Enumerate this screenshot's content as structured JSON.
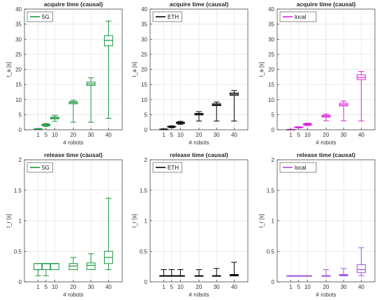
{
  "colors": {
    "5G": "#1a9641",
    "ETH": "#000000",
    "local_acquire": "#e020e0",
    "local_release": "#a050e0",
    "grid": "#e4e4e4",
    "axis": "#333333"
  },
  "chart_data": [
    {
      "type": "box",
      "title": "acquire time (causal)",
      "xlabel": "# robots",
      "ylabel": "t_a [s]",
      "ylim": [
        0,
        40
      ],
      "yticks": [
        0,
        5,
        10,
        15,
        20,
        25,
        30,
        35,
        40
      ],
      "grid": true,
      "legend": "top-left",
      "categories": [
        "1",
        "5",
        "10",
        "20",
        "30",
        "40"
      ],
      "series": [
        {
          "name": "5G",
          "color_key": "5G",
          "boxes": [
            {
              "x": 1,
              "min": 0.1,
              "q1": 0.15,
              "median": 0.2,
              "q3": 0.3,
              "max": 0.4
            },
            {
              "x": 5,
              "min": 1.1,
              "q1": 1.4,
              "median": 1.6,
              "q3": 1.8,
              "max": 2.1
            },
            {
              "x": 10,
              "min": 2.8,
              "q1": 3.6,
              "median": 3.9,
              "q3": 4.2,
              "max": 4.8
            },
            {
              "x": 20,
              "min": 2.5,
              "q1": 8.6,
              "median": 9.0,
              "q3": 9.3,
              "max": 9.8
            },
            {
              "x": 30,
              "min": 2.5,
              "q1": 14.7,
              "median": 15.2,
              "q3": 15.8,
              "max": 17.2
            },
            {
              "x": 40,
              "min": 3.8,
              "q1": 27.8,
              "median": 29.6,
              "q3": 31.2,
              "max": 36.0
            }
          ]
        }
      ]
    },
    {
      "type": "box",
      "title": "acquire time (causal)",
      "xlabel": "# robots",
      "ylabel": "t_a [s]",
      "ylim": [
        0,
        40
      ],
      "yticks": [
        0,
        5,
        10,
        15,
        20,
        25,
        30,
        35,
        40
      ],
      "grid": true,
      "legend": "top-left",
      "categories": [
        "1",
        "5",
        "10",
        "20",
        "30",
        "40"
      ],
      "series": [
        {
          "name": "ETH",
          "color_key": "ETH",
          "boxes": [
            {
              "x": 1,
              "min": 0.05,
              "q1": 0.1,
              "median": 0.15,
              "q3": 0.2,
              "max": 0.3
            },
            {
              "x": 5,
              "min": 0.7,
              "q1": 0.9,
              "median": 1.0,
              "q3": 1.1,
              "max": 1.3
            },
            {
              "x": 10,
              "min": 1.8,
              "q1": 2.1,
              "median": 2.3,
              "q3": 2.5,
              "max": 2.8
            },
            {
              "x": 20,
              "min": 2.9,
              "q1": 4.9,
              "median": 5.2,
              "q3": 5.4,
              "max": 6.0
            },
            {
              "x": 30,
              "min": 2.9,
              "q1": 8.0,
              "median": 8.3,
              "q3": 8.6,
              "max": 9.2
            },
            {
              "x": 40,
              "min": 2.9,
              "q1": 11.4,
              "median": 11.8,
              "q3": 12.2,
              "max": 13.0
            }
          ]
        }
      ]
    },
    {
      "type": "box",
      "title": "acquire time (causal)",
      "xlabel": "# robots",
      "ylabel": "t_a [s]",
      "ylim": [
        0,
        40
      ],
      "yticks": [
        0,
        5,
        10,
        15,
        20,
        25,
        30,
        35,
        40
      ],
      "grid": true,
      "legend": "top-left",
      "categories": [
        "1",
        "5",
        "10",
        "20",
        "30",
        "40"
      ],
      "series": [
        {
          "name": "local",
          "color_key": "local_acquire",
          "boxes": [
            {
              "x": 1,
              "min": 0.05,
              "q1": 0.08,
              "median": 0.1,
              "q3": 0.12,
              "max": 0.15
            },
            {
              "x": 5,
              "min": 0.6,
              "q1": 0.7,
              "median": 0.8,
              "q3": 0.9,
              "max": 1.0
            },
            {
              "x": 10,
              "min": 1.4,
              "q1": 1.6,
              "median": 1.8,
              "q3": 2.0,
              "max": 2.2
            },
            {
              "x": 20,
              "min": 3.0,
              "q1": 4.2,
              "median": 4.5,
              "q3": 4.8,
              "max": 5.2
            },
            {
              "x": 30,
              "min": 3.0,
              "q1": 7.9,
              "median": 8.3,
              "q3": 8.8,
              "max": 9.5
            },
            {
              "x": 40,
              "min": 2.9,
              "q1": 16.6,
              "median": 17.3,
              "q3": 18.2,
              "max": 19.3
            }
          ]
        }
      ]
    },
    {
      "type": "box",
      "title": "release time (causal)",
      "xlabel": "# robots",
      "ylabel": "t_r [s]",
      "ylim": [
        0,
        2
      ],
      "yticks": [
        0,
        0.5,
        1,
        1.5,
        2
      ],
      "grid": true,
      "legend": "top-left",
      "categories": [
        "1",
        "5",
        "10",
        "20",
        "30",
        "40"
      ],
      "series": [
        {
          "name": "5G",
          "color_key": "5G",
          "boxes": [
            {
              "x": 1,
              "min": 0.1,
              "q1": 0.2,
              "median": 0.2,
              "q3": 0.3,
              "max": 0.3
            },
            {
              "x": 5,
              "min": 0.1,
              "q1": 0.2,
              "median": 0.3,
              "q3": 0.3,
              "max": 0.3
            },
            {
              "x": 10,
              "min": 0.2,
              "q1": 0.2,
              "median": 0.3,
              "q3": 0.3,
              "max": 0.3
            },
            {
              "x": 20,
              "min": 0.2,
              "q1": 0.2,
              "median": 0.26,
              "q3": 0.3,
              "max": 0.4
            },
            {
              "x": 30,
              "min": 0.2,
              "q1": 0.2,
              "median": 0.27,
              "q3": 0.31,
              "max": 0.46
            },
            {
              "x": 40,
              "min": 0.2,
              "q1": 0.3,
              "median": 0.4,
              "q3": 0.5,
              "max": 1.37
            }
          ]
        }
      ]
    },
    {
      "type": "box",
      "title": "release time (causal)",
      "xlabel": "# robots",
      "ylabel": "t_r [s]",
      "ylim": [
        0,
        2
      ],
      "yticks": [
        0,
        0.5,
        1,
        1.5,
        2
      ],
      "grid": true,
      "legend": "top-left",
      "categories": [
        "1",
        "5",
        "10",
        "20",
        "30",
        "40"
      ],
      "series": [
        {
          "name": "ETH",
          "color_key": "ETH",
          "boxes": [
            {
              "x": 1,
              "min": 0.1,
              "q1": 0.1,
              "median": 0.1,
              "q3": 0.1,
              "max": 0.2
            },
            {
              "x": 5,
              "min": 0.1,
              "q1": 0.1,
              "median": 0.1,
              "q3": 0.1,
              "max": 0.2
            },
            {
              "x": 10,
              "min": 0.1,
              "q1": 0.1,
              "median": 0.1,
              "q3": 0.1,
              "max": 0.2
            },
            {
              "x": 20,
              "min": 0.1,
              "q1": 0.1,
              "median": 0.1,
              "q3": 0.1,
              "max": 0.2
            },
            {
              "x": 30,
              "min": 0.1,
              "q1": 0.1,
              "median": 0.1,
              "q3": 0.1,
              "max": 0.22
            },
            {
              "x": 40,
              "min": 0.1,
              "q1": 0.1,
              "median": 0.11,
              "q3": 0.12,
              "max": 0.32
            }
          ]
        }
      ]
    },
    {
      "type": "box",
      "title": "release time (causal)",
      "xlabel": "# robots",
      "ylabel": "t_r [s]",
      "ylim": [
        0,
        2
      ],
      "yticks": [
        0,
        0.5,
        1,
        1.5,
        2
      ],
      "grid": true,
      "legend": "top-left",
      "categories": [
        "1",
        "5",
        "10",
        "20",
        "30",
        "40"
      ],
      "series": [
        {
          "name": "local",
          "color_key": "local_release",
          "boxes": [
            {
              "x": 1,
              "min": 0.1,
              "q1": 0.1,
              "median": 0.1,
              "q3": 0.1,
              "max": 0.1
            },
            {
              "x": 5,
              "min": 0.1,
              "q1": 0.1,
              "median": 0.1,
              "q3": 0.1,
              "max": 0.1
            },
            {
              "x": 10,
              "min": 0.1,
              "q1": 0.1,
              "median": 0.1,
              "q3": 0.1,
              "max": 0.1
            },
            {
              "x": 20,
              "min": 0.1,
              "q1": 0.1,
              "median": 0.1,
              "q3": 0.1,
              "max": 0.2
            },
            {
              "x": 30,
              "min": 0.1,
              "q1": 0.1,
              "median": 0.11,
              "q3": 0.12,
              "max": 0.22
            },
            {
              "x": 40,
              "min": 0.1,
              "q1": 0.15,
              "median": 0.2,
              "q3": 0.28,
              "max": 0.56
            }
          ]
        }
      ]
    }
  ]
}
